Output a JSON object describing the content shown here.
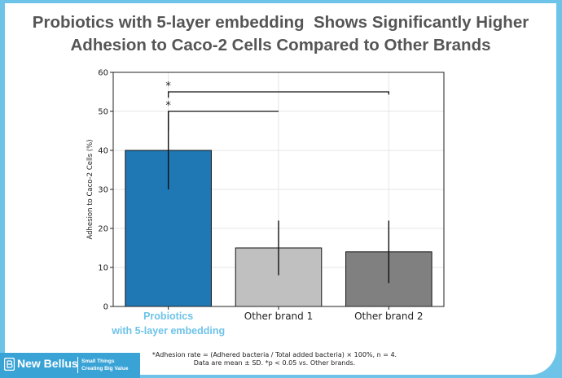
{
  "title_lines": [
    "Probiotics with 5-layer embedding  Shows Significantly Higher",
    "Adhesion to Caco-2 Cells Compared to Other Brands"
  ],
  "chart_data": {
    "type": "bar",
    "title": "Probiotics with 5-layer embedding  Shows Significantly Higher Adhesion to Caco-2 Cells Compared to Other Brands",
    "categories": [
      [
        "Probiotics",
        "with 5-layer embedding"
      ],
      [
        "Other brand 1"
      ],
      [
        "Other brand 2"
      ]
    ],
    "values": [
      40,
      15,
      14
    ],
    "error_sd": [
      10,
      7,
      8
    ],
    "bar_colors": [
      "#1f77b4",
      "#c0c0c0",
      "#808080"
    ],
    "category_label_colors": [
      "#6ec3e8",
      "#222222",
      "#222222"
    ],
    "ylabel": "Adhesion to Caco-2 Cells (%)",
    "xlabel": "",
    "ylim": [
      0,
      60
    ],
    "yticks": [
      0,
      10,
      20,
      30,
      40,
      50,
      60
    ],
    "grid": true,
    "significance": [
      {
        "from": 0,
        "to": 1,
        "y": 50,
        "label": "*"
      },
      {
        "from": 0,
        "to": 2,
        "y": 55,
        "label": "*"
      }
    ]
  },
  "footer": {
    "brand": "New Bellus",
    "tagline_lines": [
      "Small Things",
      "Creating Big Value"
    ],
    "logo_icon": "bellus-logo-icon",
    "note_lines": [
      "*Adhesion rate = (Adhered bacteria / Total added bacteria) × 100%, n = 4.",
      "Data are mean ± SD. *p < 0.05 vs. Other brands."
    ]
  }
}
